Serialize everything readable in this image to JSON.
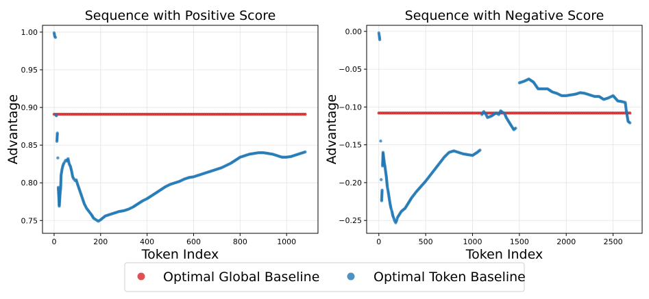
{
  "colors": {
    "global": "#d62728",
    "token": "#1f77b4"
  },
  "legend": {
    "global_label": "Optimal Global Baseline",
    "token_label": "Optimal Token Baseline"
  },
  "chart_data": [
    {
      "type": "scatter",
      "title": "Sequence with Positive Score",
      "xlabel": "Token Index",
      "ylabel": "Advantage",
      "xlim": [
        -50,
        1135
      ],
      "ylim": [
        0.733,
        1.009
      ],
      "xticks": [
        0,
        200,
        400,
        600,
        800,
        1000
      ],
      "xtick_labels": [
        "0",
        "200",
        "400",
        "600",
        "800",
        "1000"
      ],
      "yticks": [
        0.75,
        0.8,
        0.85,
        0.9,
        0.95,
        1.0
      ],
      "ytick_labels": [
        "0.75",
        "0.80",
        "0.85",
        "0.90",
        "0.95",
        "1.00"
      ],
      "series": [
        {
          "name": "Optimal Global Baseline",
          "kind": "constant",
          "value": 0.891,
          "x_range": [
            0,
            1080
          ]
        },
        {
          "name": "Optimal Token Baseline",
          "kind": "trace",
          "x": [
            0,
            3,
            6,
            8,
            10,
            12,
            14,
            16,
            18,
            20,
            22,
            24,
            26,
            28,
            30,
            34,
            38,
            42,
            46,
            50,
            55,
            60,
            65,
            70,
            75,
            80,
            85,
            90,
            95,
            100,
            110,
            120,
            130,
            140,
            150,
            160,
            170,
            180,
            190,
            200,
            220,
            240,
            260,
            280,
            300,
            320,
            340,
            360,
            380,
            400,
            420,
            440,
            460,
            480,
            500,
            520,
            540,
            560,
            580,
            600,
            620,
            640,
            660,
            680,
            700,
            720,
            740,
            760,
            780,
            800,
            820,
            840,
            860,
            880,
            900,
            920,
            940,
            960,
            980,
            1000,
            1020,
            1040,
            1060,
            1080
          ],
          "y": [
            0.999,
            0.994,
            0.993,
            0.89,
            0.889,
            0.855,
            0.866,
            0.833,
            0.794,
            0.782,
            0.769,
            0.778,
            0.787,
            0.792,
            0.81,
            0.818,
            0.823,
            0.826,
            0.828,
            0.83,
            0.829,
            0.832,
            0.825,
            0.822,
            0.816,
            0.808,
            0.805,
            0.803,
            0.804,
            0.799,
            0.79,
            0.781,
            0.772,
            0.766,
            0.762,
            0.758,
            0.753,
            0.751,
            0.749,
            0.751,
            0.756,
            0.758,
            0.76,
            0.762,
            0.763,
            0.765,
            0.768,
            0.772,
            0.776,
            0.779,
            0.783,
            0.787,
            0.791,
            0.795,
            0.798,
            0.8,
            0.802,
            0.805,
            0.807,
            0.808,
            0.81,
            0.812,
            0.814,
            0.816,
            0.818,
            0.82,
            0.823,
            0.826,
            0.83,
            0.834,
            0.836,
            0.838,
            0.839,
            0.84,
            0.84,
            0.839,
            0.838,
            0.836,
            0.834,
            0.834,
            0.835,
            0.837,
            0.839,
            0.841
          ]
        }
      ]
    },
    {
      "type": "scatter",
      "title": "Sequence with Negative Score",
      "xlabel": "Token Index",
      "ylabel": "Advantage",
      "xlim": [
        -130,
        2810
      ],
      "ylim": [
        -0.267,
        0.008
      ],
      "xticks": [
        0,
        500,
        1000,
        1500,
        2000,
        2500
      ],
      "xtick_labels": [
        "0",
        "500",
        "1000",
        "1500",
        "2000",
        "2500"
      ],
      "yticks": [
        -0.25,
        -0.2,
        -0.15,
        -0.1,
        -0.05,
        0.0
      ],
      "ytick_labels": [
        "−0.25",
        "−0.20",
        "−0.15",
        "−0.10",
        "−0.05",
        "0.00"
      ],
      "series": [
        {
          "name": "Optimal Global Baseline",
          "kind": "constant",
          "value": -0.108,
          "x_range": [
            0,
            2680
          ]
        },
        {
          "name": "Optimal Token Baseline",
          "kind": "trace",
          "x": [
            0,
            5,
            10,
            20,
            25,
            30,
            35,
            40,
            45,
            50,
            55,
            60,
            65,
            70,
            80,
            90,
            100,
            110,
            120,
            130,
            140,
            150,
            160,
            170,
            180,
            190,
            200,
            220,
            240,
            260,
            280,
            300,
            350,
            400,
            450,
            500,
            550,
            600,
            650,
            700,
            750,
            800,
            850,
            900,
            950,
            1000,
            1050,
            1080,
            1100,
            1120,
            1140,
            1160,
            1200,
            1250,
            1280,
            1300,
            1320,
            1340,
            1360,
            1380,
            1400,
            1420,
            1440,
            1460,
            1500,
            1550,
            1600,
            1650,
            1700,
            1750,
            1800,
            1850,
            1900,
            1950,
            2000,
            2050,
            2100,
            2150,
            2200,
            2250,
            2300,
            2350,
            2400,
            2450,
            2500,
            2550,
            2600,
            2630,
            2640,
            2660,
            2680
          ],
          "y": [
            -0.002,
            -0.006,
            -0.011,
            -0.145,
            -0.196,
            -0.224,
            -0.21,
            -0.178,
            -0.16,
            -0.165,
            -0.17,
            -0.175,
            -0.178,
            -0.183,
            -0.192,
            -0.205,
            -0.212,
            -0.22,
            -0.228,
            -0.234,
            -0.238,
            -0.244,
            -0.247,
            -0.251,
            -0.253,
            -0.25,
            -0.246,
            -0.242,
            -0.238,
            -0.236,
            -0.234,
            -0.23,
            -0.22,
            -0.212,
            -0.205,
            -0.198,
            -0.19,
            -0.182,
            -0.174,
            -0.166,
            -0.16,
            -0.158,
            -0.16,
            -0.162,
            -0.163,
            -0.164,
            -0.16,
            -0.157,
            -0.11,
            -0.106,
            -0.109,
            -0.114,
            -0.112,
            -0.108,
            -0.11,
            -0.105,
            -0.107,
            -0.108,
            -0.114,
            -0.118,
            -0.122,
            -0.126,
            -0.13,
            -0.128,
            -0.068,
            -0.066,
            -0.063,
            -0.067,
            -0.076,
            -0.076,
            -0.076,
            -0.08,
            -0.082,
            -0.085,
            -0.085,
            -0.084,
            -0.083,
            -0.081,
            -0.082,
            -0.084,
            -0.086,
            -0.086,
            -0.09,
            -0.088,
            -0.085,
            -0.092,
            -0.093,
            -0.094,
            -0.104,
            -0.119,
            -0.121
          ]
        }
      ]
    }
  ]
}
